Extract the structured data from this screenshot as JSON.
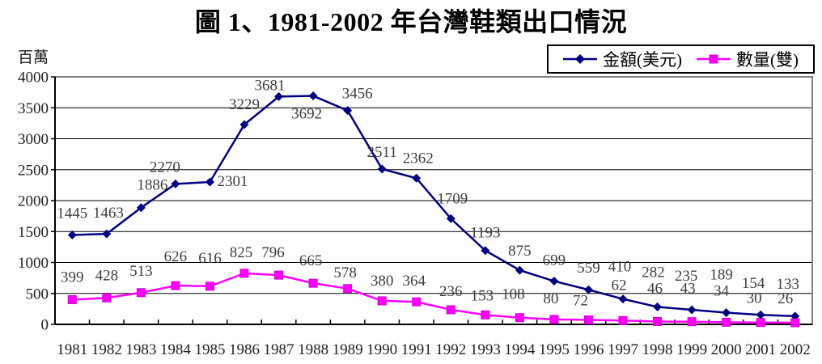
{
  "chart_data": {
    "type": "line",
    "title": "圖 1、1981-2002 年台灣鞋類出口情況",
    "ylabel_unit": "百萬",
    "ylim": [
      0,
      4000
    ],
    "ytick_step": 500,
    "grid": true,
    "legend_position": "top-right",
    "categories": [
      "1981",
      "1982",
      "1983",
      "1984",
      "1985",
      "1986",
      "1987",
      "1988",
      "1989",
      "1990",
      "1991",
      "1992",
      "1993",
      "1994",
      "1995",
      "1996",
      "1997",
      "1998",
      "1999",
      "2000",
      "2001",
      "2002"
    ],
    "series": [
      {
        "name": "金額(美元)",
        "color": "#000080",
        "marker": "diamond",
        "values": [
          1445,
          1463,
          1886,
          2270,
          2301,
          3229,
          3681,
          3692,
          3456,
          2511,
          2362,
          1709,
          1193,
          875,
          699,
          559,
          410,
          282,
          235,
          189,
          154,
          133
        ],
        "label_offsets": [
          [
            0,
            -21
          ],
          [
            2,
            -20
          ],
          [
            14,
            -22
          ],
          [
            -13,
            -15
          ],
          [
            9,
            5
          ],
          [
            0,
            -19
          ],
          [
            -11,
            -8
          ],
          [
            -8,
            28
          ],
          [
            12,
            -15
          ],
          [
            0,
            -15
          ],
          [
            2,
            -19
          ],
          [
            2,
            -19
          ],
          [
            0,
            -16
          ],
          [
            0,
            -18
          ],
          [
            0,
            -20
          ],
          [
            0,
            -21
          ],
          [
            -4,
            -34
          ],
          [
            -5,
            -37
          ],
          [
            -7,
            -36
          ],
          [
            -6,
            -41
          ],
          [
            -9,
            -33
          ],
          [
            -9,
            -34
          ]
        ],
        "label_anchors": {
          "4": "start"
        }
      },
      {
        "name": "數量(雙)",
        "color": "#FF00FF",
        "marker": "square",
        "values": [
          399,
          428,
          513,
          626,
          616,
          825,
          796,
          665,
          578,
          380,
          364,
          236,
          153,
          108,
          80,
          72,
          62,
          46,
          43,
          34,
          30,
          26
        ],
        "label_offsets": [
          [
            0,
            -22
          ],
          [
            0,
            -22
          ],
          [
            0,
            -21
          ],
          [
            0,
            -30
          ],
          [
            0,
            -29
          ],
          [
            -4,
            -20
          ],
          [
            -7,
            -22
          ],
          [
            -3,
            -22
          ],
          [
            -3,
            -14
          ],
          [
            0,
            -19
          ],
          [
            -3,
            -20
          ],
          [
            0,
            -17
          ],
          [
            -4,
            -18
          ],
          [
            -8,
            -23
          ],
          [
            -4,
            -20
          ],
          [
            -10,
            -18
          ],
          [
            -5,
            -38
          ],
          [
            -3,
            -35
          ],
          [
            -5,
            -35
          ],
          [
            -6,
            -33
          ],
          [
            -8,
            -24
          ],
          [
            -12,
            -24
          ]
        ],
        "label_anchors": {}
      }
    ]
  }
}
